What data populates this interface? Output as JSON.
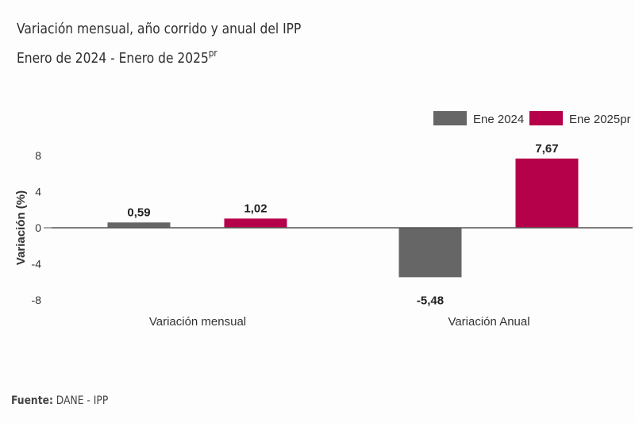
{
  "header": {
    "title_line1": "Variación mensual, año corrido y anual del IPP",
    "title_line2": "Enero de 2024 - Enero de 2025",
    "title_line2_sup": "pr"
  },
  "footer": {
    "source_label": "Fuente:",
    "source_value": " DANE - IPP"
  },
  "chart_data": {
    "type": "bar",
    "title": "Variación mensual, año corrido y anual del IPP",
    "subtitle": "Enero de 2024 - Enero de 2025pr",
    "xlabel": "",
    "ylabel": "Variación (%)",
    "ylim": [
      -8,
      8
    ],
    "yticks": [
      8,
      4,
      0,
      -4,
      -8
    ],
    "ytick_labels": [
      "8",
      "4",
      "0",
      "-4",
      "-8"
    ],
    "grid": false,
    "legend_position": "top-right",
    "categories": [
      "Variación mensual",
      "Variación Anual"
    ],
    "series": [
      {
        "name": "Ene 2024",
        "color": "#666666",
        "values": [
          0.59,
          -5.48
        ],
        "labels": [
          "0,59",
          "-5,48"
        ]
      },
      {
        "name": "Ene 2025pr",
        "color": "#b5004a",
        "values": [
          1.02,
          7.67
        ],
        "labels": [
          "1,02",
          "7,67"
        ]
      }
    ]
  }
}
